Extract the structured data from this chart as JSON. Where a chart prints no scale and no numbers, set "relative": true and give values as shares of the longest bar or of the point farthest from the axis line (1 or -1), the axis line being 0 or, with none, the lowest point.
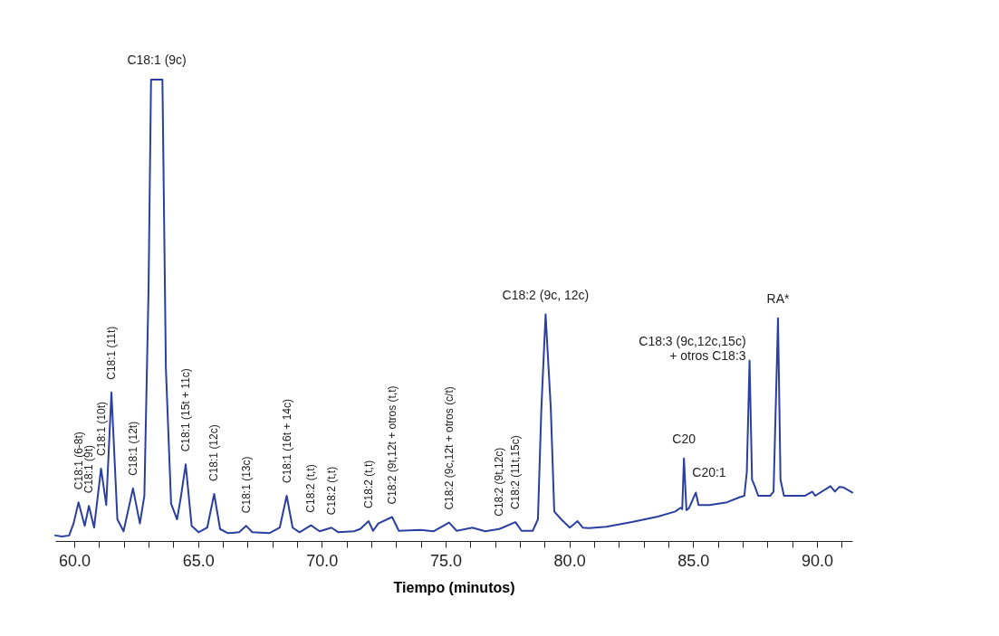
{
  "chart_data": {
    "type": "line",
    "relative": true,
    "xlabel": "Tiempo (minutos)",
    "xlim": [
      59.23,
      91.43
    ],
    "xticks": [
      {
        "value": 60,
        "label": "60.0"
      },
      {
        "value": 61,
        "label": null
      },
      {
        "value": 62,
        "label": null
      },
      {
        "value": 63,
        "label": null
      },
      {
        "value": 64,
        "label": null
      },
      {
        "value": 65,
        "label": "65.0"
      },
      {
        "value": 66,
        "label": null
      },
      {
        "value": 67,
        "label": null
      },
      {
        "value": 68,
        "label": null
      },
      {
        "value": 69,
        "label": null
      },
      {
        "value": 70,
        "label": "70.0"
      },
      {
        "value": 71,
        "label": null
      },
      {
        "value": 72,
        "label": null
      },
      {
        "value": 73,
        "label": null
      },
      {
        "value": 74,
        "label": null
      },
      {
        "value": 75,
        "label": "75.0"
      },
      {
        "value": 76,
        "label": null
      },
      {
        "value": 77,
        "label": null
      },
      {
        "value": 78,
        "label": null
      },
      {
        "value": 79,
        "label": null
      },
      {
        "value": 80,
        "label": "80.0"
      },
      {
        "value": 81,
        "label": null
      },
      {
        "value": 82,
        "label": null
      },
      {
        "value": 83,
        "label": null
      },
      {
        "value": 84,
        "label": null
      },
      {
        "value": 85,
        "label": "85.0"
      },
      {
        "value": 86,
        "label": null
      },
      {
        "value": 87,
        "label": null
      },
      {
        "value": 88,
        "label": null
      },
      {
        "value": 89,
        "label": null
      },
      {
        "value": 90,
        "label": "90.0"
      },
      {
        "value": 91,
        "label": null
      }
    ],
    "grid": false,
    "legend": false,
    "marker": "none",
    "line_style": "solid",
    "x": [
      59.23,
      59.51,
      59.79,
      59.97,
      60.17,
      60.42,
      60.59,
      60.8,
      61.08,
      61.29,
      61.5,
      61.74,
      61.99,
      62.37,
      62.65,
      62.83,
      63.0,
      63.1,
      63.56,
      63.7,
      63.91,
      64.15,
      64.29,
      64.5,
      64.74,
      65.02,
      65.37,
      65.65,
      65.89,
      66.21,
      66.66,
      66.94,
      67.19,
      67.88,
      68.3,
      68.58,
      68.82,
      69.1,
      69.56,
      69.91,
      70.39,
      70.67,
      71.3,
      71.55,
      71.89,
      72.07,
      72.28,
      72.84,
      73.11,
      73.99,
      74.51,
      75.14,
      75.45,
      76.08,
      76.6,
      77.16,
      77.3,
      77.82,
      78.07,
      78.52,
      78.73,
      78.87,
      79.04,
      79.25,
      79.39,
      79.67,
      80.02,
      80.33,
      80.54,
      80.79,
      81.49,
      82.53,
      83.58,
      84.28,
      84.49,
      84.56,
      84.63,
      84.73,
      84.83,
      85.11,
      85.22,
      85.67,
      86.37,
      86.89,
      87.07,
      87.17,
      87.28,
      87.38,
      87.49,
      87.63,
      88.11,
      88.25,
      88.43,
      88.53,
      88.67,
      89.51,
      89.82,
      89.93,
      90.55,
      90.73,
      90.9,
      91.08,
      91.43
    ],
    "series": [
      {
        "color": "#2b3fa0",
        "values": [
          0.012,
          0.01,
          0.012,
          0.038,
          0.084,
          0.033,
          0.076,
          0.029,
          0.157,
          0.078,
          0.322,
          0.047,
          0.021,
          0.114,
          0.038,
          0.098,
          0.547,
          1,
          1,
          0.374,
          0.081,
          0.047,
          0.09,
          0.166,
          0.033,
          0.019,
          0.029,
          0.102,
          0.026,
          0.017,
          0.019,
          0.033,
          0.019,
          0.017,
          0.029,
          0.098,
          0.029,
          0.019,
          0.034,
          0.021,
          0.029,
          0.019,
          0.021,
          0.026,
          0.043,
          0.022,
          0.038,
          0.052,
          0.022,
          0.024,
          0.021,
          0.04,
          0.022,
          0.029,
          0.021,
          0.026,
          0.029,
          0.041,
          0.022,
          0.022,
          0.047,
          0.288,
          0.491,
          0.288,
          0.064,
          0.047,
          0.029,
          0.043,
          0.029,
          0.028,
          0.031,
          0.041,
          0.053,
          0.064,
          0.072,
          0.069,
          0.179,
          0.067,
          0.071,
          0.105,
          0.078,
          0.078,
          0.084,
          0.095,
          0.098,
          0.15,
          0.391,
          0.133,
          0.119,
          0.098,
          0.098,
          0.107,
          0.483,
          0.133,
          0.098,
          0.098,
          0.107,
          0.098,
          0.119,
          0.107,
          0.117,
          0.116,
          0.105
        ]
      }
    ],
    "annotations": [
      {
        "text": "C18:1 (6-8t)",
        "x": 60.17,
        "y": 0.084
      },
      {
        "text": "C18:1 (9t)",
        "x": 60.59,
        "y": 0.076
      },
      {
        "text": "C18:1 (10t)",
        "x": 61.08,
        "y": 0.157
      },
      {
        "text": "C18:1 (11t)",
        "x": 61.5,
        "y": 0.322
      },
      {
        "text": "C18:1 (12t)",
        "x": 62.37,
        "y": 0.114
      },
      {
        "text": "C18:1 (9c)",
        "x": 63.33,
        "y": 1
      },
      {
        "text": "C18:1 (15t  + 11c)",
        "x": 64.5,
        "y": 0.166
      },
      {
        "text": "C18:1 (12c)",
        "x": 65.65,
        "y": 0.102
      },
      {
        "text": "C18:1 (13c)",
        "x": 66.94,
        "y": 0.033
      },
      {
        "text": "C18:1 (16t  + 14c)",
        "x": 68.58,
        "y": 0.098
      },
      {
        "text": "C18:2 (t,t)",
        "x": 69.56,
        "y": 0.034
      },
      {
        "text": "C18:2 (t,t)",
        "x": 70.39,
        "y": 0.029
      },
      {
        "text": "C18:2 (t,t)",
        "x": 71.89,
        "y": 0.043
      },
      {
        "text": "C18:2 (9t,12t  + otros (t,t)",
        "x": 72.84,
        "y": 0.052
      },
      {
        "text": "C18:2 (9c,12t  + otros (c/t)",
        "x": 75.14,
        "y": 0.04
      },
      {
        "text": "C18:2 (9t,12c)",
        "x": 77.16,
        "y": 0.026
      },
      {
        "text": "C18:2 (11t,15c)",
        "x": 77.82,
        "y": 0.041
      },
      {
        "text": "C18:2 (9c, 12c)",
        "x": 79.04,
        "y": 0.491
      },
      {
        "text": "C20",
        "x": 84.63,
        "y": 0.179
      },
      {
        "text": "C20:1",
        "x": 85.11,
        "y": 0.105
      },
      {
        "text": "C18:3 (9c,12c,15c)\n+ otros C18:3",
        "x": 87.28,
        "y": 0.391
      },
      {
        "text": "RA*",
        "x": 88.43,
        "y": 0.483
      }
    ]
  }
}
